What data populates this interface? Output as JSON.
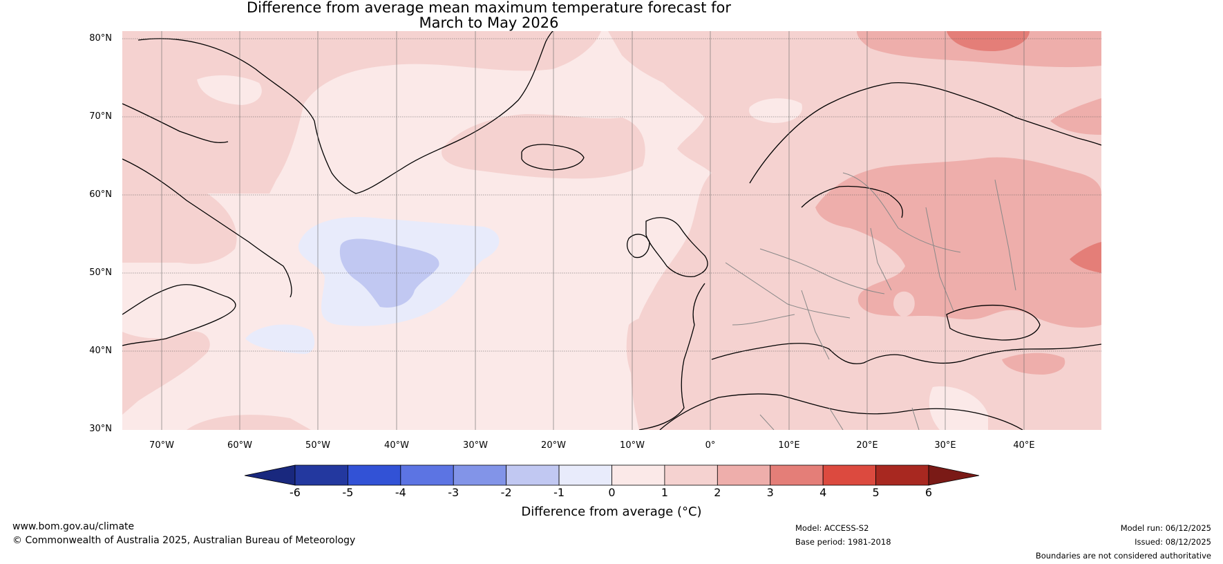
{
  "title_line1": "Difference from average mean maximum temperature forecast for",
  "title_line2": "March to May 2026",
  "latitude_labels": [
    "80°N",
    "70°N",
    "60°N",
    "50°N",
    "40°N",
    "30°N"
  ],
  "longitude_labels": [
    "70°W",
    "60°W",
    "50°W",
    "40°W",
    "30°W",
    "20°W",
    "10°W",
    "0°",
    "10°E",
    "20°E",
    "30°E",
    "40°E"
  ],
  "colorbar": {
    "ticks": [
      "-6",
      "-5",
      "-4",
      "-3",
      "-2",
      "-1",
      "0",
      "1",
      "2",
      "3",
      "4",
      "5",
      "6"
    ],
    "colors": [
      "#23389f",
      "#3252d6",
      "#5c74e3",
      "#8294e8",
      "#c1c8f2",
      "#e8ebfb",
      "#fbe9e8",
      "#f5d2d0",
      "#eeaeab",
      "#e47e78",
      "#dc4a3f",
      "#a82820"
    ],
    "under_color": "#19287e",
    "over_color": "#7a1a16",
    "label": "Difference from average (°C)"
  },
  "footer": {
    "website": "www.bom.gov.au/climate",
    "copyright": "© Commonwealth of Australia 2025, Australian Bureau of Meteorology",
    "model": "Model: ACCESS-S2",
    "base_period": "Base period: 1981-2018",
    "model_run": "Model run: 06/12/2025",
    "issued": "Issued: 08/12/2025",
    "disclaimer": "Boundaries are not considered authoritative"
  }
}
